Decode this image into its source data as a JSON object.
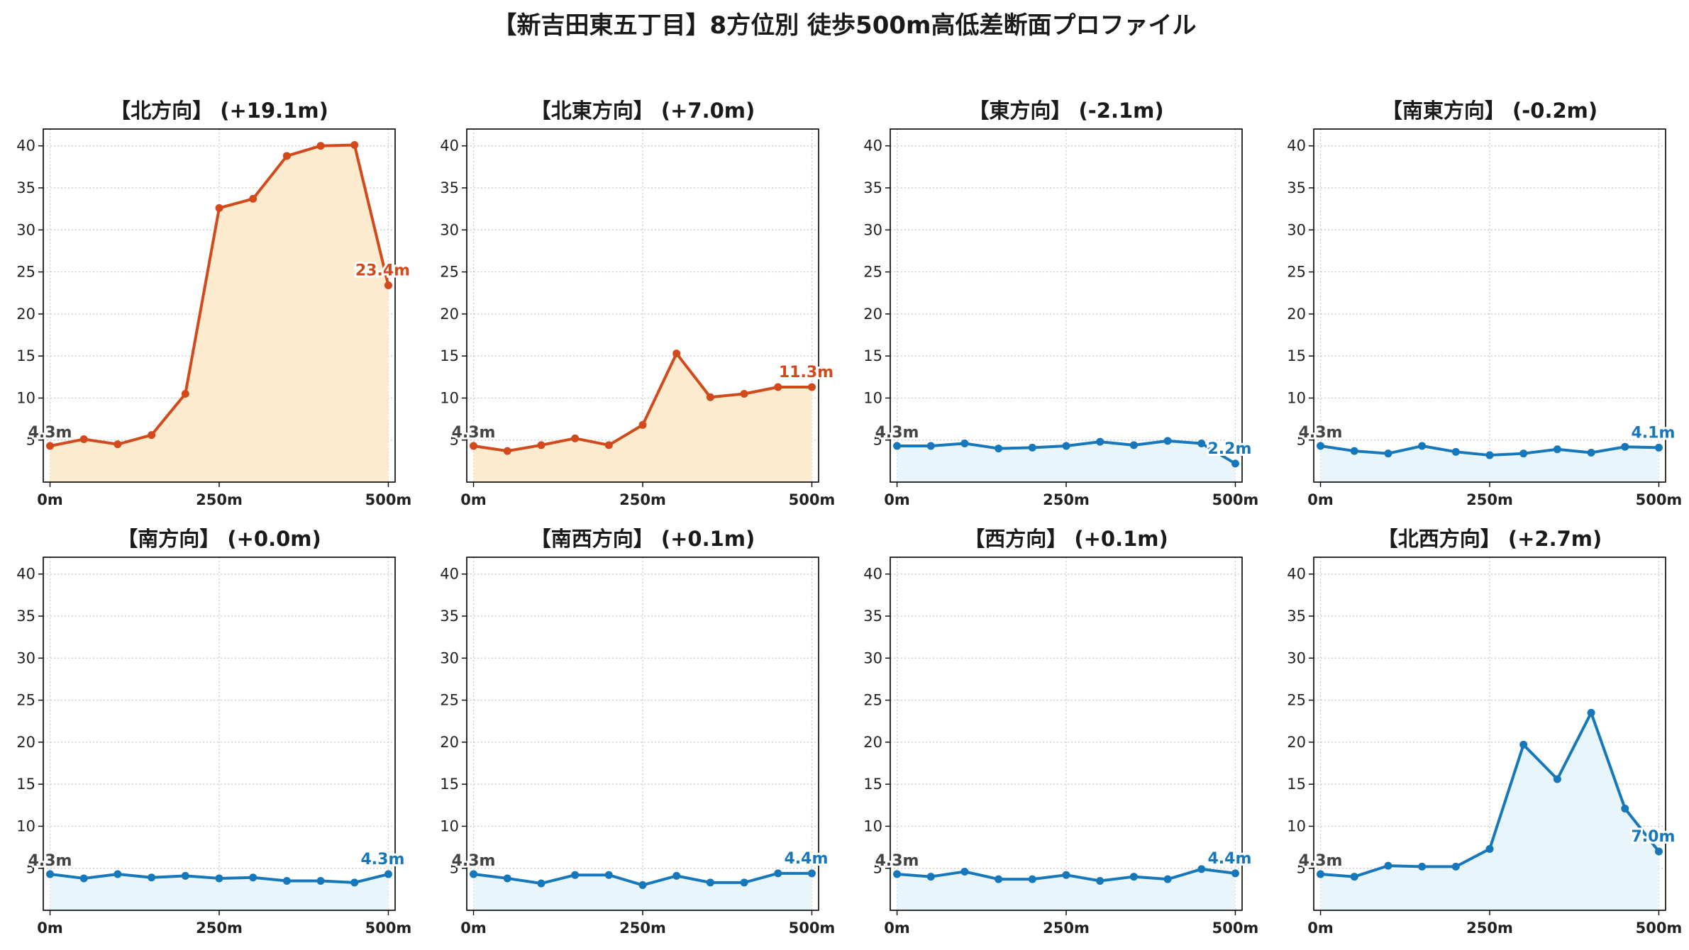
{
  "title": "【新吉田東五丁目】8方位別 徒歩500m高低差断面プロファイル",
  "colors": {
    "up_line": "#d24a1c",
    "up_fill": "#fdebcf",
    "down_line": "#1677ba",
    "down_fill": "#e8f5fb",
    "start_label": "#444444",
    "grid": "#c8c8c8"
  },
  "chart_data": [
    {
      "type": "area",
      "title": "【北方向】 (+19.1m)",
      "trend": "up",
      "x": [
        0,
        50,
        100,
        150,
        200,
        250,
        300,
        350,
        400,
        450,
        500
      ],
      "xtick_values": [
        0,
        250,
        500
      ],
      "xtick_labels": [
        "0m",
        "250m",
        "500m"
      ],
      "yticks": [
        5,
        10,
        15,
        20,
        25,
        30,
        35,
        40
      ],
      "ylim": [
        0,
        42
      ],
      "xlim": [
        -10,
        510
      ],
      "grid": true,
      "values": [
        4.3,
        5.1,
        4.5,
        5.6,
        10.5,
        32.6,
        33.7,
        38.8,
        40.0,
        40.1,
        23.4
      ],
      "start_label": "4.3m",
      "end_label": "23.4m"
    },
    {
      "type": "area",
      "title": "【北東方向】 (+7.0m)",
      "trend": "up",
      "x": [
        0,
        50,
        100,
        150,
        200,
        250,
        300,
        350,
        400,
        450,
        500
      ],
      "xtick_values": [
        0,
        250,
        500
      ],
      "xtick_labels": [
        "0m",
        "250m",
        "500m"
      ],
      "yticks": [
        5,
        10,
        15,
        20,
        25,
        30,
        35,
        40
      ],
      "ylim": [
        0,
        42
      ],
      "xlim": [
        -10,
        510
      ],
      "grid": true,
      "values": [
        4.3,
        3.7,
        4.4,
        5.2,
        4.4,
        6.8,
        15.3,
        10.1,
        10.5,
        11.3,
        11.3
      ],
      "start_label": "4.3m",
      "end_label": "11.3m"
    },
    {
      "type": "area",
      "title": "【東方向】 (-2.1m)",
      "trend": "down",
      "x": [
        0,
        50,
        100,
        150,
        200,
        250,
        300,
        350,
        400,
        450,
        500
      ],
      "xtick_values": [
        0,
        250,
        500
      ],
      "xtick_labels": [
        "0m",
        "250m",
        "500m"
      ],
      "yticks": [
        5,
        10,
        15,
        20,
        25,
        30,
        35,
        40
      ],
      "ylim": [
        0,
        42
      ],
      "xlim": [
        -10,
        510
      ],
      "grid": true,
      "values": [
        4.3,
        4.3,
        4.6,
        4.0,
        4.1,
        4.3,
        4.8,
        4.4,
        4.9,
        4.6,
        2.2
      ],
      "start_label": "4.3m",
      "end_label": "2.2m"
    },
    {
      "type": "area",
      "title": "【南東方向】 (-0.2m)",
      "trend": "down",
      "x": [
        0,
        50,
        100,
        150,
        200,
        250,
        300,
        350,
        400,
        450,
        500
      ],
      "xtick_values": [
        0,
        250,
        500
      ],
      "xtick_labels": [
        "0m",
        "250m",
        "500m"
      ],
      "yticks": [
        5,
        10,
        15,
        20,
        25,
        30,
        35,
        40
      ],
      "ylim": [
        0,
        42
      ],
      "xlim": [
        -10,
        510
      ],
      "grid": true,
      "values": [
        4.3,
        3.7,
        3.4,
        4.3,
        3.6,
        3.2,
        3.4,
        3.9,
        3.5,
        4.2,
        4.1
      ],
      "start_label": "4.3m",
      "end_label": "4.1m"
    },
    {
      "type": "area",
      "title": "【南方向】 (+0.0m)",
      "trend": "down",
      "x": [
        0,
        50,
        100,
        150,
        200,
        250,
        300,
        350,
        400,
        450,
        500
      ],
      "xtick_values": [
        0,
        250,
        500
      ],
      "xtick_labels": [
        "0m",
        "250m",
        "500m"
      ],
      "yticks": [
        5,
        10,
        15,
        20,
        25,
        30,
        35,
        40
      ],
      "ylim": [
        0,
        42
      ],
      "xlim": [
        -10,
        510
      ],
      "grid": true,
      "values": [
        4.3,
        3.8,
        4.3,
        3.9,
        4.1,
        3.8,
        3.9,
        3.5,
        3.5,
        3.3,
        4.3
      ],
      "start_label": "4.3m",
      "end_label": "4.3m"
    },
    {
      "type": "area",
      "title": "【南西方向】 (+0.1m)",
      "trend": "down",
      "x": [
        0,
        50,
        100,
        150,
        200,
        250,
        300,
        350,
        400,
        450,
        500
      ],
      "xtick_values": [
        0,
        250,
        500
      ],
      "xtick_labels": [
        "0m",
        "250m",
        "500m"
      ],
      "yticks": [
        5,
        10,
        15,
        20,
        25,
        30,
        35,
        40
      ],
      "ylim": [
        0,
        42
      ],
      "xlim": [
        -10,
        510
      ],
      "grid": true,
      "values": [
        4.3,
        3.8,
        3.2,
        4.2,
        4.2,
        3.0,
        4.1,
        3.3,
        3.3,
        4.4,
        4.4
      ],
      "start_label": "4.3m",
      "end_label": "4.4m"
    },
    {
      "type": "area",
      "title": "【西方向】 (+0.1m)",
      "trend": "down",
      "x": [
        0,
        50,
        100,
        150,
        200,
        250,
        300,
        350,
        400,
        450,
        500
      ],
      "xtick_values": [
        0,
        250,
        500
      ],
      "xtick_labels": [
        "0m",
        "250m",
        "500m"
      ],
      "yticks": [
        5,
        10,
        15,
        20,
        25,
        30,
        35,
        40
      ],
      "ylim": [
        0,
        42
      ],
      "xlim": [
        -10,
        510
      ],
      "grid": true,
      "values": [
        4.3,
        4.0,
        4.6,
        3.7,
        3.7,
        4.2,
        3.5,
        4.0,
        3.7,
        4.9,
        4.4
      ],
      "start_label": "4.3m",
      "end_label": "4.4m"
    },
    {
      "type": "area",
      "title": "【北西方向】 (+2.7m)",
      "trend": "down",
      "x": [
        0,
        50,
        100,
        150,
        200,
        250,
        300,
        350,
        400,
        450,
        500
      ],
      "xtick_values": [
        0,
        250,
        500
      ],
      "xtick_labels": [
        "0m",
        "250m",
        "500m"
      ],
      "yticks": [
        5,
        10,
        15,
        20,
        25,
        30,
        35,
        40
      ],
      "ylim": [
        0,
        42
      ],
      "xlim": [
        -10,
        510
      ],
      "grid": true,
      "values": [
        4.3,
        4.0,
        5.3,
        5.2,
        5.2,
        7.3,
        19.7,
        15.6,
        23.5,
        12.1,
        7.0
      ],
      "start_label": "4.3m",
      "end_label": "7.0m"
    }
  ]
}
